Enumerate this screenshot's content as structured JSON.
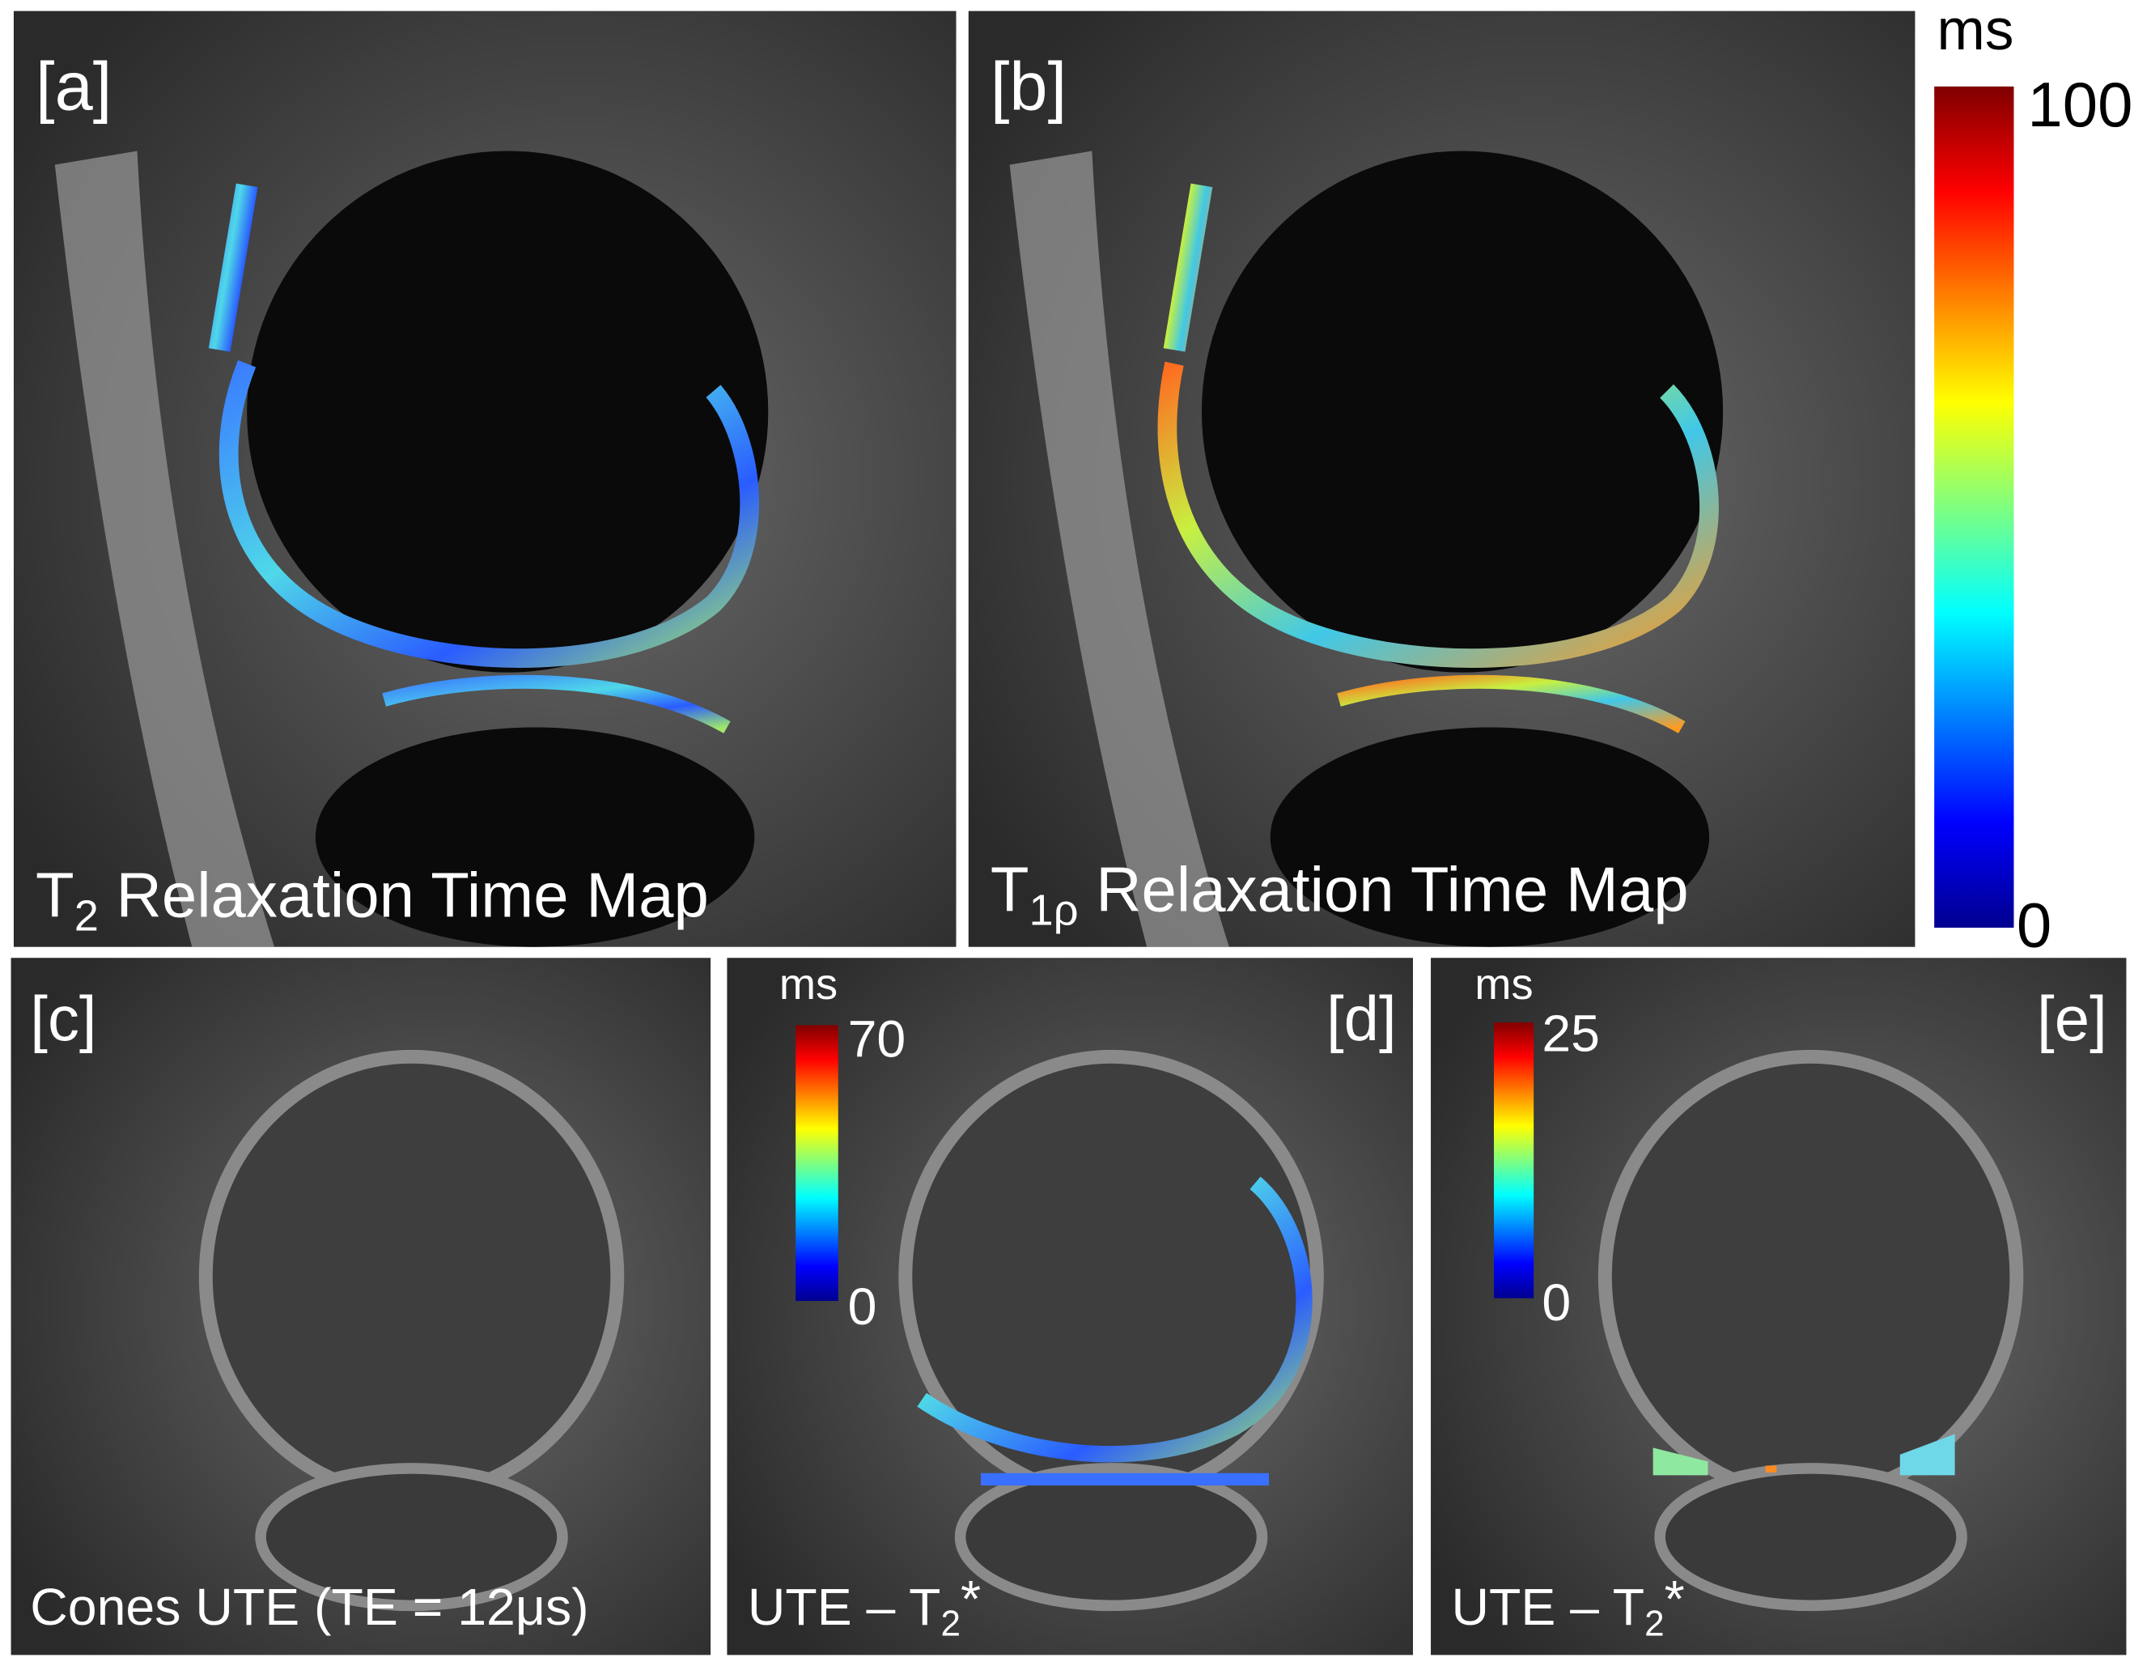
{
  "panels": [
    {
      "label": "[a]",
      "caption": {
        "text": "T",
        "sub": "2",
        "rest": " Relaxation Time Map"
      }
    },
    {
      "label": "[b]",
      "caption": {
        "text": "T",
        "sub": "1ρ",
        "rest": " Relaxation Time Map"
      }
    },
    {
      "label": "[c]",
      "caption": {
        "text": "Cones UTE (TE = 12μs)"
      }
    },
    {
      "label": "[d]",
      "caption": {
        "text": "UTE – T",
        "sub": "2",
        "rest": "*"
      }
    },
    {
      "label": "[e]",
      "caption": {
        "text": "UTE – T",
        "sub": "2",
        "rest": "*"
      }
    }
  ],
  "colorbars": [
    {
      "unit": "ms",
      "max": 100,
      "min": 0
    },
    {
      "unit": "ms",
      "max": 70,
      "min": 0
    },
    {
      "unit": "ms",
      "max": 25,
      "min": 0
    }
  ]
}
